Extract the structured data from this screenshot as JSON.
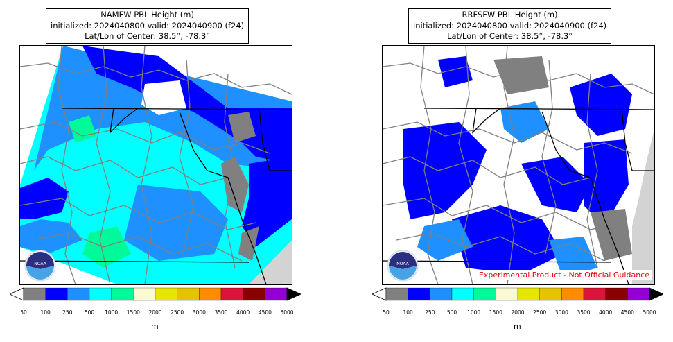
{
  "panels": [
    {
      "title_line1": "NAMFW PBL Height (m)",
      "title_line2": "initialized: 2024040800 valid: 2024040900 (f24)",
      "title_line3": "Lat/Lon of Center: 38.5°, -78.3°",
      "banner": "",
      "logo_text": "NOAA"
    },
    {
      "title_line1": "RRFSFW PBL Height (m)",
      "title_line2": "initialized: 2024040800 valid: 2024040900 (f24)",
      "title_line3": "Lat/Lon of Center: 38.5°, -78.3°",
      "banner": "Experimental Product - Not Official Guidance",
      "logo_text": "NOAA"
    }
  ],
  "colorbar": {
    "unit": "m",
    "ticks": [
      "50",
      "100",
      "250",
      "500",
      "1000",
      "1500",
      "2000",
      "2500",
      "3000",
      "3500",
      "4000",
      "4500",
      "5000"
    ],
    "colors": [
      "#808080",
      "#0000ff",
      "#1e90ff",
      "#00ffff",
      "#00fa9a",
      "#fafad2",
      "#e6e600",
      "#e6c300",
      "#ff8c00",
      "#dc143c",
      "#8b0000",
      "#9400d3"
    ],
    "under_color": "#ffffff",
    "over_color": "#000000"
  },
  "legend_colors": {
    "water": "#d3d3d3",
    "county_border": "#808080",
    "state_border": "#000000"
  }
}
